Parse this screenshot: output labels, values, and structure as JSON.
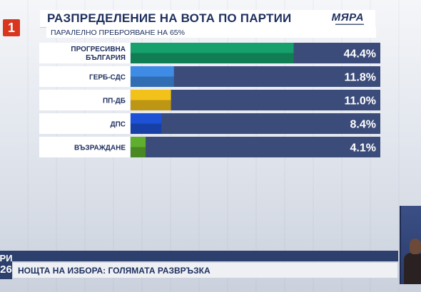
{
  "channel": {
    "logo_text": "1"
  },
  "header": {
    "title": "РАЗПРЕДЕЛЕНИЕ НА ВОТА ПО ПАРТИИ",
    "brand": "МЯРА",
    "subtitle": "ПАРАЛЕЛНО ПРЕБРОЯВАНЕ НА 65%"
  },
  "chart_data": {
    "type": "bar",
    "orientation": "horizontal",
    "categories": [
      "ПРОГРЕСИВНА БЪЛГАРИЯ",
      "ГЕРБ-СДС",
      "ПП-ДБ",
      "ДПС",
      "ВЪЗРАЖДАНЕ"
    ],
    "values": [
      44.4,
      11.8,
      11.0,
      8.4,
      4.1
    ],
    "value_labels": [
      "44.4%",
      "11.8%",
      "11.0%",
      "8.4%",
      "4.1%"
    ],
    "colors": [
      "#15a06c",
      "#3f8ce6",
      "#f2c21a",
      "#1e52d6",
      "#5fae2e"
    ],
    "xlim": [
      0,
      68
    ],
    "grid": false,
    "legend": "none"
  },
  "ticker": {
    "left_top": "РИ",
    "left_bottom": "26",
    "text": "НОЩТА НА ИЗБОРА: ГОЛЯМАТА РАЗВРЪЗКА"
  }
}
